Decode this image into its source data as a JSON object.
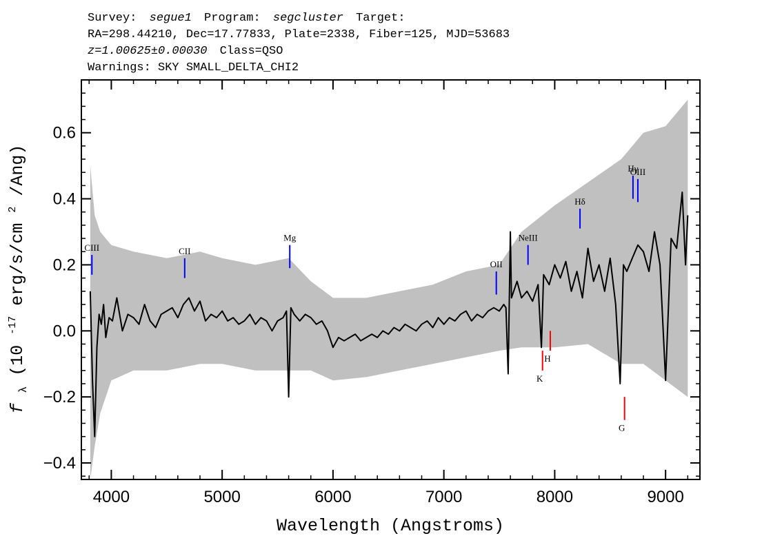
{
  "header": {
    "line1": {
      "survey_label": "Survey:",
      "survey_value": "segue1",
      "program_label": "Program:",
      "program_value": "segcluster",
      "target_label": "Target:"
    },
    "line2": "RA=298.44210, Dec=17.77833, Plate=2338, Fiber=125, MJD=53683",
    "line3": {
      "z_value": "z=1.00625±0.00030",
      "class_value": "Class=QSO"
    },
    "line4": "Warnings: SKY SMALL_DELTA_CHI2"
  },
  "chart_data": {
    "type": "line",
    "xlabel": "Wavelength (Angstroms)",
    "ylabel_main": "f",
    "ylabel_sub": "λ",
    "ylabel_rest": " (10",
    "ylabel_exp": "-17",
    "ylabel_units": " erg/s/cm",
    "ylabel_units_exp": "2",
    "ylabel_units_tail": "/Ang)",
    "xlim": [
      3730,
      9310
    ],
    "ylim": [
      -0.45,
      0.76
    ],
    "x_ticks": [
      4000,
      5000,
      6000,
      7000,
      8000,
      9000
    ],
    "x_tick_labels": [
      "4000",
      "5000",
      "6000",
      "7000",
      "8000",
      "9000"
    ],
    "y_ticks": [
      -0.4,
      -0.2,
      0.0,
      0.2,
      0.4,
      0.6
    ],
    "y_tick_labels": [
      "−0.4",
      "−0.2",
      "0.0",
      "0.2",
      "0.4",
      "0.6"
    ],
    "grid": false,
    "series": [
      {
        "role": "flux",
        "color": "#000000",
        "x": [
          3810,
          3830,
          3850,
          3870,
          3890,
          3910,
          3930,
          3950,
          3980,
          4010,
          4050,
          4100,
          4150,
          4200,
          4250,
          4300,
          4350,
          4400,
          4450,
          4500,
          4550,
          4600,
          4650,
          4700,
          4750,
          4800,
          4850,
          4900,
          4950,
          5000,
          5050,
          5100,
          5150,
          5200,
          5250,
          5300,
          5350,
          5400,
          5450,
          5500,
          5550,
          5580,
          5600,
          5620,
          5650,
          5700,
          5750,
          5800,
          5850,
          5900,
          5950,
          6000,
          6050,
          6100,
          6150,
          6200,
          6250,
          6300,
          6350,
          6400,
          6450,
          6500,
          6550,
          6600,
          6650,
          6700,
          6750,
          6800,
          6850,
          6900,
          6950,
          7000,
          7050,
          7100,
          7150,
          7200,
          7250,
          7300,
          7350,
          7400,
          7450,
          7500,
          7540,
          7560,
          7580,
          7600,
          7610,
          7630,
          7660,
          7700,
          7750,
          7800,
          7850,
          7880,
          7900,
          7950,
          8000,
          8050,
          8100,
          8150,
          8200,
          8250,
          8300,
          8350,
          8400,
          8450,
          8500,
          8550,
          8590,
          8620,
          8650,
          8700,
          8750,
          8800,
          8850,
          8900,
          8950,
          9000,
          9050,
          9100,
          9150,
          9180,
          9200
        ],
        "y": [
          0.12,
          -0.15,
          -0.32,
          -0.05,
          0.05,
          0.02,
          0.08,
          -0.02,
          0.04,
          0.03,
          0.1,
          0.0,
          0.05,
          0.04,
          0.02,
          0.08,
          0.03,
          0.01,
          0.05,
          0.06,
          0.07,
          0.04,
          0.08,
          0.1,
          0.06,
          0.09,
          0.03,
          0.05,
          0.04,
          0.06,
          0.03,
          0.04,
          0.02,
          0.03,
          0.05,
          0.02,
          0.04,
          0.03,
          0.0,
          0.03,
          0.04,
          0.06,
          -0.2,
          0.07,
          0.05,
          0.03,
          0.05,
          0.04,
          0.02,
          0.03,
          0.0,
          -0.05,
          -0.02,
          -0.03,
          -0.02,
          -0.01,
          -0.03,
          -0.02,
          -0.01,
          -0.02,
          0.0,
          -0.01,
          0.01,
          0.0,
          0.02,
          0.01,
          0.0,
          0.02,
          0.03,
          0.01,
          0.04,
          0.02,
          0.04,
          0.03,
          0.05,
          0.06,
          0.03,
          0.05,
          0.04,
          0.06,
          0.07,
          0.06,
          0.08,
          0.07,
          -0.13,
          0.3,
          0.1,
          0.12,
          0.15,
          0.1,
          0.12,
          0.09,
          0.14,
          -0.05,
          0.17,
          0.14,
          0.2,
          0.16,
          0.21,
          0.12,
          0.18,
          0.1,
          0.25,
          0.15,
          0.2,
          0.12,
          0.22,
          0.08,
          -0.16,
          0.2,
          0.18,
          0.22,
          0.26,
          0.24,
          0.18,
          0.3,
          0.2,
          -0.15,
          0.28,
          0.25,
          0.42,
          0.2,
          0.35
        ]
      },
      {
        "role": "error-envelope",
        "color": "#c0c0c0",
        "x": [
          3810,
          3850,
          3900,
          4000,
          4200,
          4500,
          4800,
          5000,
          5300,
          5600,
          5800,
          6000,
          6300,
          6600,
          6900,
          7200,
          7500,
          7700,
          8000,
          8300,
          8600,
          8800,
          9000,
          9200
        ],
        "upper": [
          0.5,
          0.35,
          0.3,
          0.26,
          0.24,
          0.22,
          0.24,
          0.22,
          0.2,
          0.22,
          0.15,
          0.1,
          0.1,
          0.12,
          0.14,
          0.18,
          0.2,
          0.3,
          0.38,
          0.45,
          0.52,
          0.6,
          0.62,
          0.7
        ],
        "lower": [
          -0.45,
          -0.35,
          -0.25,
          -0.15,
          -0.12,
          -0.12,
          -0.1,
          -0.1,
          -0.12,
          -0.12,
          -0.12,
          -0.15,
          -0.14,
          -0.12,
          -0.1,
          -0.08,
          -0.06,
          -0.05,
          -0.05,
          -0.04,
          -0.1,
          -0.1,
          -0.15,
          -0.2
        ]
      }
    ],
    "emission_lines": [
      {
        "label": "CIII",
        "wavelength": 3825,
        "y_bottom": 0.17,
        "y_top": 0.23,
        "color": "#0000ff"
      },
      {
        "label": "CII",
        "wavelength": 4662,
        "y_bottom": 0.16,
        "y_top": 0.22,
        "color": "#0000ff"
      },
      {
        "label": "Mg",
        "wavelength": 5610,
        "y_bottom": 0.19,
        "y_top": 0.26,
        "color": "#0000ff"
      },
      {
        "label": "OII",
        "wavelength": 7473,
        "y_bottom": 0.11,
        "y_top": 0.18,
        "color": "#0000ff"
      },
      {
        "label": "NeIII",
        "wavelength": 7759,
        "y_bottom": 0.2,
        "y_top": 0.26,
        "color": "#0000ff"
      },
      {
        "label": "Hδ",
        "wavelength": 8228,
        "y_bottom": 0.31,
        "y_top": 0.37,
        "color": "#0000ff"
      },
      {
        "label": "Hγ",
        "wavelength": 8706,
        "y_bottom": 0.4,
        "y_top": 0.47,
        "color": "#0000ff"
      },
      {
        "label": "OIII",
        "wavelength": 8750,
        "y_bottom": 0.39,
        "y_top": 0.46,
        "color": "#0000ff"
      }
    ],
    "absorption_lines": [
      {
        "label": "K",
        "wavelength": 7890,
        "y_top": -0.06,
        "y_bottom": -0.12,
        "color": "#ff0000"
      },
      {
        "label": "H",
        "wavelength": 7960,
        "y_top": 0.0,
        "y_bottom": -0.06,
        "color": "#ff0000"
      },
      {
        "label": "G",
        "wavelength": 8630,
        "y_top": -0.2,
        "y_bottom": -0.27,
        "color": "#ff0000"
      }
    ]
  }
}
